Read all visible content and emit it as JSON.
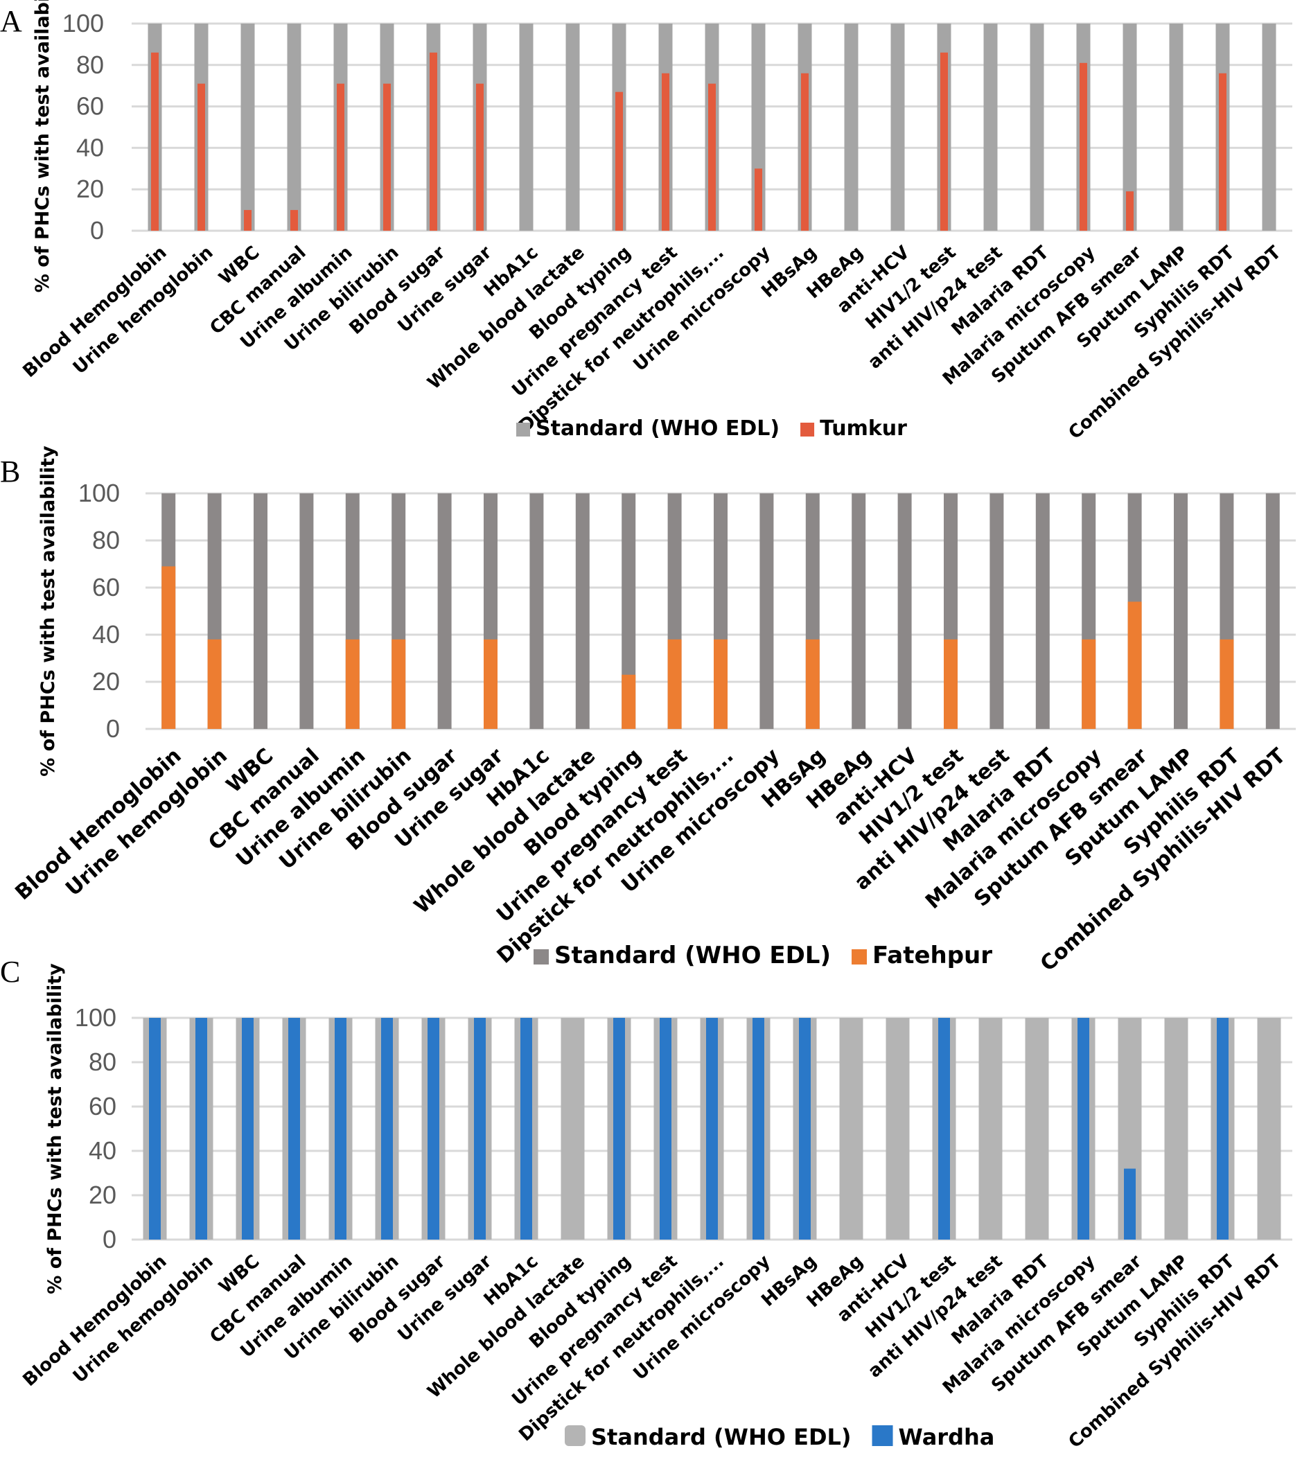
{
  "chart_data": [
    {
      "panel": "A",
      "type": "bar",
      "ylabel": "% of PHCs with test availability",
      "ylim": [
        0,
        100
      ],
      "yticks": [
        0,
        20,
        40,
        60,
        80,
        100
      ],
      "grid": true,
      "legend_placement": "bottom",
      "categories": [
        "Blood Hemoglobin",
        "Urine hemoglobin",
        "WBC",
        "CBC manual",
        "Urine albumin",
        "Urine bilirubin",
        "Blood sugar",
        "Urine sugar",
        "HbA1c",
        "Whole blood lactate",
        "Blood typing",
        "Urine pregnancy test",
        "Dipstick for neutrophils,...",
        "Urine microscopy",
        "HBsAg",
        "HBeAg",
        "anti-HCV",
        "HIV1/2 test",
        "anti HIV/p24 test",
        "Malaria RDT",
        "Malaria microscopy",
        "Sputum AFB smear",
        "Sputum LAMP",
        "Syphilis RDT",
        "Combined Syphilis-HIV RDT"
      ],
      "series": [
        {
          "name": "Standard (WHO EDL)",
          "color": "#a5a5a5",
          "values": [
            100,
            100,
            100,
            100,
            100,
            100,
            100,
            100,
            100,
            100,
            100,
            100,
            100,
            100,
            100,
            100,
            100,
            100,
            100,
            100,
            100,
            100,
            100,
            100,
            100
          ]
        },
        {
          "name": "Tumkur",
          "color": "#e35b3d",
          "values": [
            86,
            71,
            10,
            10,
            71,
            71,
            86,
            71,
            0,
            0,
            67,
            76,
            71,
            30,
            76,
            0,
            0,
            86,
            0,
            0,
            81,
            19,
            0,
            76,
            0
          ]
        }
      ]
    },
    {
      "panel": "B",
      "type": "bar",
      "ylabel": "% of PHCs with test availability",
      "ylim": [
        0,
        100
      ],
      "yticks": [
        0,
        20,
        40,
        60,
        80,
        100
      ],
      "grid": true,
      "legend_placement": "bottom",
      "categories": [
        "Blood Hemoglobin",
        "Urine hemoglobin",
        "WBC",
        "CBC manual",
        "Urine albumin",
        "Urine bilirubin",
        "Blood sugar",
        "Urine sugar",
        "HbA1c",
        "Whole blood lactate",
        "Blood typing",
        "Urine pregnancy test",
        "Dipstick for neutrophils,...",
        "Urine microscopy",
        "HBsAg",
        "HBeAg",
        "anti-HCV",
        "HIV1/2 test",
        "anti HIV/p24 test",
        "Malaria RDT",
        "Malaria microscopy",
        "Sputum AFB smear",
        "Sputum LAMP",
        "Syphilis RDT",
        "Combined Syphilis-HIV RDT"
      ],
      "series": [
        {
          "name": "Standard (WHO EDL)",
          "color": "#8c8888",
          "values": [
            100,
            100,
            100,
            100,
            100,
            100,
            100,
            100,
            100,
            100,
            100,
            100,
            100,
            100,
            100,
            100,
            100,
            100,
            100,
            100,
            100,
            100,
            100,
            100,
            100
          ]
        },
        {
          "name": "Fatehpur",
          "color": "#ed7d31",
          "values": [
            69,
            38,
            0,
            0,
            38,
            38,
            0,
            38,
            0,
            0,
            23,
            38,
            38,
            0,
            38,
            0,
            0,
            38,
            0,
            0,
            38,
            54,
            0,
            38,
            0
          ]
        }
      ]
    },
    {
      "panel": "C",
      "type": "bar",
      "ylabel": "% of PHCs with test availability",
      "ylim": [
        0,
        100
      ],
      "yticks": [
        0,
        20,
        40,
        60,
        80,
        100
      ],
      "grid": true,
      "legend_placement": "bottom",
      "categories": [
        "Blood Hemoglobin",
        "Urine hemoglobin",
        "WBC",
        "CBC manual",
        "Urine albumin",
        "Urine bilirubin",
        "Blood sugar",
        "Urine sugar",
        "HbA1c",
        "Whole blood lactate",
        "Blood typing",
        "Urine pregnancy test",
        "Dipstick for neutrophils,...",
        "Urine microscopy",
        "HBsAg",
        "HBeAg",
        "anti-HCV",
        "HIV1/2 test",
        "anti HIV/p24 test",
        "Malaria RDT",
        "Malaria microscopy",
        "Sputum AFB smear",
        "Sputum LAMP",
        "Syphilis RDT",
        "Combined Syphilis-HIV RDT"
      ],
      "series": [
        {
          "name": "Standard (WHO EDL)",
          "color": "#b4b4b4",
          "values": [
            100,
            100,
            100,
            100,
            100,
            100,
            100,
            100,
            100,
            100,
            100,
            100,
            100,
            100,
            100,
            100,
            100,
            100,
            100,
            100,
            100,
            100,
            100,
            100,
            100
          ]
        },
        {
          "name": "Wardha",
          "color": "#2a78c8",
          "values": [
            100,
            100,
            100,
            100,
            100,
            100,
            100,
            100,
            100,
            0,
            100,
            100,
            100,
            100,
            100,
            0,
            0,
            100,
            0,
            0,
            100,
            32,
            0,
            100,
            0
          ]
        }
      ]
    }
  ]
}
